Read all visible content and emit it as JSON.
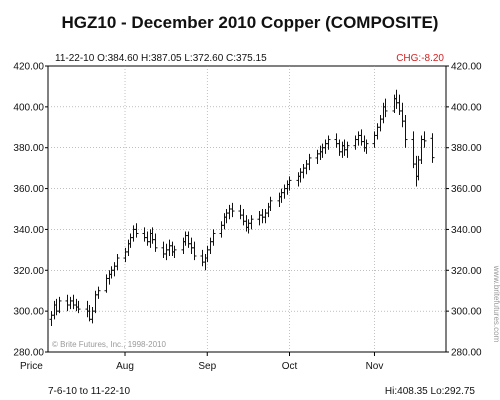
{
  "title": "HGZ10 -  December 2010 Copper (COMPOSITE)",
  "info_line": "11-22-10 O:384.60 H:387.05 L:372.60 C:375.15",
  "chg_text": "CHG:-8.20",
  "price_label": "Price",
  "copyright": "© Brite Futures, Inc., 1998-2010",
  "watermark": "www.britefutures.com",
  "date_range": "7-6-10 to 11-22-10",
  "hilo": "Hi:408.35 Lo:292.75",
  "colors": {
    "bars": "#111111",
    "chg": "#d42020",
    "grid": "#999999",
    "frame": "#000000"
  },
  "chart_data": {
    "type": "ohlc",
    "ylim": [
      280,
      420
    ],
    "yticks": [
      "420.00",
      "400.00",
      "380.00",
      "360.00",
      "340.00",
      "320.00",
      "300.00",
      "280.00"
    ],
    "xticks": [
      {
        "label": "Aug",
        "date": "2010-08-02"
      },
      {
        "label": "Sep",
        "date": "2010-09-01"
      },
      {
        "label": "Oct",
        "date": "2010-10-01"
      },
      {
        "label": "Nov",
        "date": "2010-11-01"
      }
    ],
    "xlim": [
      "2010-07-06",
      "2010-11-26"
    ],
    "grid": true,
    "bars": [
      {
        "date": "2010-07-06",
        "o": 296,
        "h": 300,
        "l": 292.75,
        "c": 298
      },
      {
        "date": "2010-07-07",
        "o": 298,
        "h": 305,
        "l": 296,
        "c": 303
      },
      {
        "date": "2010-07-08",
        "o": 303,
        "h": 306,
        "l": 298,
        "c": 300
      },
      {
        "date": "2010-07-09",
        "o": 300,
        "h": 307,
        "l": 299,
        "c": 305
      },
      {
        "date": "2010-07-12",
        "o": 305,
        "h": 308,
        "l": 300,
        "c": 303
      },
      {
        "date": "2010-07-13",
        "o": 303,
        "h": 307,
        "l": 301,
        "c": 305
      },
      {
        "date": "2010-07-14",
        "o": 305,
        "h": 308,
        "l": 301,
        "c": 303
      },
      {
        "date": "2010-07-15",
        "o": 303,
        "h": 306,
        "l": 300,
        "c": 302
      },
      {
        "date": "2010-07-16",
        "o": 302,
        "h": 305,
        "l": 299,
        "c": 301
      },
      {
        "date": "2010-07-19",
        "o": 301,
        "h": 305,
        "l": 297,
        "c": 300
      },
      {
        "date": "2010-07-20",
        "o": 300,
        "h": 303,
        "l": 295,
        "c": 296
      },
      {
        "date": "2010-07-21",
        "o": 296,
        "h": 302,
        "l": 294,
        "c": 300
      },
      {
        "date": "2010-07-22",
        "o": 300,
        "h": 310,
        "l": 299,
        "c": 308
      },
      {
        "date": "2010-07-23",
        "o": 308,
        "h": 312,
        "l": 306,
        "c": 310
      },
      {
        "date": "2010-07-26",
        "o": 310,
        "h": 318,
        "l": 309,
        "c": 316
      },
      {
        "date": "2010-07-27",
        "o": 316,
        "h": 320,
        "l": 313,
        "c": 318
      },
      {
        "date": "2010-07-28",
        "o": 318,
        "h": 322,
        "l": 316,
        "c": 320
      },
      {
        "date": "2010-07-29",
        "o": 320,
        "h": 324,
        "l": 317,
        "c": 322
      },
      {
        "date": "2010-07-30",
        "o": 322,
        "h": 328,
        "l": 320,
        "c": 326
      },
      {
        "date": "2010-08-02",
        "o": 326,
        "h": 331,
        "l": 324,
        "c": 329
      },
      {
        "date": "2010-08-03",
        "o": 329,
        "h": 335,
        "l": 327,
        "c": 333
      },
      {
        "date": "2010-08-04",
        "o": 333,
        "h": 338,
        "l": 331,
        "c": 336
      },
      {
        "date": "2010-08-05",
        "o": 336,
        "h": 342,
        "l": 334,
        "c": 340
      },
      {
        "date": "2010-08-06",
        "o": 340,
        "h": 343,
        "l": 336,
        "c": 338
      },
      {
        "date": "2010-08-09",
        "o": 338,
        "h": 341,
        "l": 334,
        "c": 336
      },
      {
        "date": "2010-08-10",
        "o": 336,
        "h": 339,
        "l": 332,
        "c": 334
      },
      {
        "date": "2010-08-11",
        "o": 334,
        "h": 340,
        "l": 331,
        "c": 338
      },
      {
        "date": "2010-08-12",
        "o": 338,
        "h": 341,
        "l": 333,
        "c": 335
      },
      {
        "date": "2010-08-13",
        "o": 335,
        "h": 338,
        "l": 329,
        "c": 331
      },
      {
        "date": "2010-08-16",
        "o": 331,
        "h": 334,
        "l": 326,
        "c": 328
      },
      {
        "date": "2010-08-17",
        "o": 328,
        "h": 333,
        "l": 325,
        "c": 330
      },
      {
        "date": "2010-08-18",
        "o": 330,
        "h": 335,
        "l": 327,
        "c": 332
      },
      {
        "date": "2010-08-19",
        "o": 332,
        "h": 334,
        "l": 327,
        "c": 329
      },
      {
        "date": "2010-08-20",
        "o": 329,
        "h": 332,
        "l": 326,
        "c": 330
      },
      {
        "date": "2010-08-23",
        "o": 330,
        "h": 336,
        "l": 328,
        "c": 334
      },
      {
        "date": "2010-08-24",
        "o": 334,
        "h": 339,
        "l": 332,
        "c": 337
      },
      {
        "date": "2010-08-25",
        "o": 337,
        "h": 339,
        "l": 331,
        "c": 333
      },
      {
        "date": "2010-08-26",
        "o": 333,
        "h": 336,
        "l": 328,
        "c": 331
      },
      {
        "date": "2010-08-27",
        "o": 331,
        "h": 334,
        "l": 325,
        "c": 327
      },
      {
        "date": "2010-08-30",
        "o": 327,
        "h": 330,
        "l": 322,
        "c": 324
      },
      {
        "date": "2010-08-31",
        "o": 324,
        "h": 328,
        "l": 320,
        "c": 326
      },
      {
        "date": "2010-09-01",
        "o": 326,
        "h": 332,
        "l": 324,
        "c": 330
      },
      {
        "date": "2010-09-02",
        "o": 330,
        "h": 336,
        "l": 328,
        "c": 334
      },
      {
        "date": "2010-09-03",
        "o": 334,
        "h": 340,
        "l": 332,
        "c": 338
      },
      {
        "date": "2010-09-06",
        "o": 338,
        "h": 344,
        "l": 336,
        "c": 342
      },
      {
        "date": "2010-09-07",
        "o": 342,
        "h": 348,
        "l": 340,
        "c": 346
      },
      {
        "date": "2010-09-08",
        "o": 346,
        "h": 350,
        "l": 343,
        "c": 348
      },
      {
        "date": "2010-09-09",
        "o": 348,
        "h": 352,
        "l": 345,
        "c": 350
      },
      {
        "date": "2010-09-10",
        "o": 350,
        "h": 353,
        "l": 346,
        "c": 349
      },
      {
        "date": "2010-09-13",
        "o": 349,
        "h": 352,
        "l": 345,
        "c": 347
      },
      {
        "date": "2010-09-14",
        "o": 347,
        "h": 350,
        "l": 342,
        "c": 344
      },
      {
        "date": "2010-09-15",
        "o": 344,
        "h": 347,
        "l": 339,
        "c": 341
      },
      {
        "date": "2010-09-16",
        "o": 341,
        "h": 345,
        "l": 338,
        "c": 343
      },
      {
        "date": "2010-09-17",
        "o": 343,
        "h": 347,
        "l": 340,
        "c": 345
      },
      {
        "date": "2010-09-20",
        "o": 345,
        "h": 349,
        "l": 342,
        "c": 347
      },
      {
        "date": "2010-09-21",
        "o": 347,
        "h": 350,
        "l": 343,
        "c": 346
      },
      {
        "date": "2010-09-22",
        "o": 346,
        "h": 350,
        "l": 343,
        "c": 348
      },
      {
        "date": "2010-09-23",
        "o": 348,
        "h": 353,
        "l": 346,
        "c": 351
      },
      {
        "date": "2010-09-24",
        "o": 351,
        "h": 356,
        "l": 349,
        "c": 354
      },
      {
        "date": "2010-09-27",
        "o": 354,
        "h": 358,
        "l": 351,
        "c": 356
      },
      {
        "date": "2010-09-28",
        "o": 356,
        "h": 360,
        "l": 353,
        "c": 358
      },
      {
        "date": "2010-09-29",
        "o": 358,
        "h": 362,
        "l": 355,
        "c": 360
      },
      {
        "date": "2010-09-30",
        "o": 360,
        "h": 364,
        "l": 357,
        "c": 362
      },
      {
        "date": "2010-10-01",
        "o": 362,
        "h": 366,
        "l": 359,
        "c": 364
      },
      {
        "date": "2010-10-04",
        "o": 364,
        "h": 368,
        "l": 361,
        "c": 366
      },
      {
        "date": "2010-10-05",
        "o": 366,
        "h": 370,
        "l": 363,
        "c": 368
      },
      {
        "date": "2010-10-06",
        "o": 368,
        "h": 372,
        "l": 365,
        "c": 370
      },
      {
        "date": "2010-10-07",
        "o": 370,
        "h": 374,
        "l": 367,
        "c": 372
      },
      {
        "date": "2010-10-08",
        "o": 372,
        "h": 377,
        "l": 369,
        "c": 375
      },
      {
        "date": "2010-10-11",
        "o": 375,
        "h": 379,
        "l": 372,
        "c": 377
      },
      {
        "date": "2010-10-12",
        "o": 377,
        "h": 381,
        "l": 374,
        "c": 378
      },
      {
        "date": "2010-10-13",
        "o": 378,
        "h": 382,
        "l": 375,
        "c": 380
      },
      {
        "date": "2010-10-14",
        "o": 380,
        "h": 384,
        "l": 377,
        "c": 382
      },
      {
        "date": "2010-10-15",
        "o": 382,
        "h": 386,
        "l": 379,
        "c": 384
      },
      {
        "date": "2010-10-18",
        "o": 384,
        "h": 387,
        "l": 380,
        "c": 382
      },
      {
        "date": "2010-10-19",
        "o": 382,
        "h": 384,
        "l": 376,
        "c": 378
      },
      {
        "date": "2010-10-20",
        "o": 378,
        "h": 383,
        "l": 375,
        "c": 381
      },
      {
        "date": "2010-10-21",
        "o": 381,
        "h": 384,
        "l": 376,
        "c": 379
      },
      {
        "date": "2010-10-22",
        "o": 379,
        "h": 383,
        "l": 375,
        "c": 381
      },
      {
        "date": "2010-10-25",
        "o": 381,
        "h": 386,
        "l": 379,
        "c": 384
      },
      {
        "date": "2010-10-26",
        "o": 384,
        "h": 388,
        "l": 381,
        "c": 386
      },
      {
        "date": "2010-10-27",
        "o": 386,
        "h": 389,
        "l": 381,
        "c": 383
      },
      {
        "date": "2010-10-28",
        "o": 383,
        "h": 386,
        "l": 378,
        "c": 380
      },
      {
        "date": "2010-10-29",
        "o": 380,
        "h": 384,
        "l": 377,
        "c": 382
      },
      {
        "date": "2010-11-01",
        "o": 382,
        "h": 388,
        "l": 380,
        "c": 386
      },
      {
        "date": "2010-11-02",
        "o": 386,
        "h": 392,
        "l": 384,
        "c": 390
      },
      {
        "date": "2010-11-03",
        "o": 390,
        "h": 396,
        "l": 388,
        "c": 394
      },
      {
        "date": "2010-11-04",
        "o": 394,
        "h": 402,
        "l": 392,
        "c": 400
      },
      {
        "date": "2010-11-05",
        "o": 400,
        "h": 404,
        "l": 395,
        "c": 398
      },
      {
        "date": "2010-11-08",
        "o": 398,
        "h": 406,
        "l": 397,
        "c": 404
      },
      {
        "date": "2010-11-09",
        "o": 404,
        "h": 408.35,
        "l": 399,
        "c": 402
      },
      {
        "date": "2010-11-10",
        "o": 402,
        "h": 406,
        "l": 396,
        "c": 398
      },
      {
        "date": "2010-11-11",
        "o": 398,
        "h": 402,
        "l": 390,
        "c": 393
      },
      {
        "date": "2010-11-12",
        "o": 393,
        "h": 396,
        "l": 380,
        "c": 384
      },
      {
        "date": "2010-11-15",
        "o": 384,
        "h": 388,
        "l": 370,
        "c": 372
      },
      {
        "date": "2010-11-16",
        "o": 372,
        "h": 376,
        "l": 361,
        "c": 366
      },
      {
        "date": "2010-11-17",
        "o": 366,
        "h": 376,
        "l": 364,
        "c": 374
      },
      {
        "date": "2010-11-18",
        "o": 374,
        "h": 386,
        "l": 372,
        "c": 384
      },
      {
        "date": "2010-11-19",
        "o": 384,
        "h": 388,
        "l": 380,
        "c": 383.35
      },
      {
        "date": "2010-11-22",
        "o": 384.6,
        "h": 387.05,
        "l": 372.6,
        "c": 375.15
      }
    ]
  }
}
